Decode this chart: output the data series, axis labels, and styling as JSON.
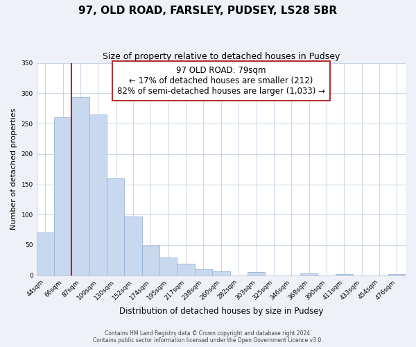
{
  "title": "97, OLD ROAD, FARSLEY, PUDSEY, LS28 5BR",
  "subtitle": "Size of property relative to detached houses in Pudsey",
  "xlabel": "Distribution of detached houses by size in Pudsey",
  "ylabel": "Number of detached properties",
  "bar_labels": [
    "44sqm",
    "66sqm",
    "87sqm",
    "109sqm",
    "130sqm",
    "152sqm",
    "174sqm",
    "195sqm",
    "217sqm",
    "238sqm",
    "260sqm",
    "282sqm",
    "303sqm",
    "325sqm",
    "346sqm",
    "368sqm",
    "390sqm",
    "411sqm",
    "433sqm",
    "454sqm",
    "476sqm"
  ],
  "bar_values": [
    70,
    260,
    293,
    265,
    160,
    97,
    49,
    29,
    19,
    10,
    6,
    0,
    5,
    0,
    0,
    3,
    0,
    2,
    0,
    0,
    2
  ],
  "bar_color": "#c8d8ef",
  "bar_edge_color": "#9ab5d9",
  "vline_color": "#cc0000",
  "vline_xindex": 2,
  "ylim": [
    0,
    350
  ],
  "yticks": [
    0,
    50,
    100,
    150,
    200,
    250,
    300,
    350
  ],
  "annotation_title": "97 OLD ROAD: 79sqm",
  "annotation_line1": "← 17% of detached houses are smaller (212)",
  "annotation_line2": "82% of semi-detached houses are larger (1,033) →",
  "footer1": "Contains HM Land Registry data © Crown copyright and database right 2024.",
  "footer2": "Contains public sector information licensed under the Open Government Licence v3.0.",
  "bg_color": "#eef2f8",
  "plot_bg_color": "#ffffff",
  "grid_color": "#c8d4e8"
}
